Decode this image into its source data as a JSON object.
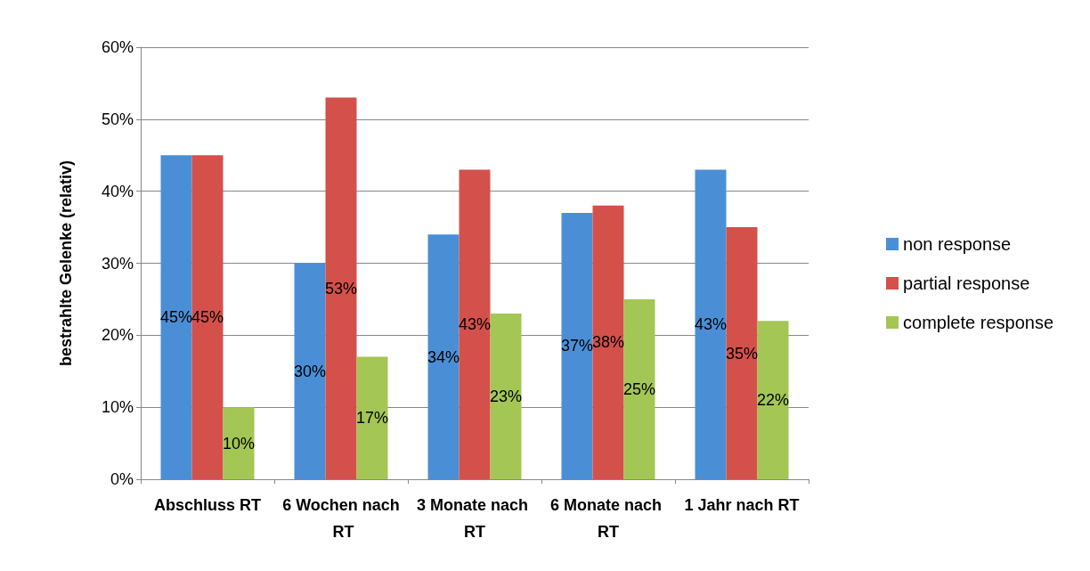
{
  "chart_data": {
    "type": "bar",
    "ylabel": "bestrahlte Gelenke (relativ)",
    "categories": [
      "Abschluss RT",
      "6 Wochen nach RT",
      "3 Monate nach RT",
      "6 Monate nach RT",
      "1 Jahr nach RT"
    ],
    "series": [
      {
        "name": "non response",
        "color": "#4a8fd6",
        "values": [
          45,
          30,
          34,
          37,
          43
        ],
        "value_labels": [
          "45%",
          "30%",
          "34%",
          "37%",
          "43%"
        ]
      },
      {
        "name": "partial response",
        "color": "#d4504a",
        "values": [
          45,
          53,
          43,
          38,
          35
        ],
        "value_labels": [
          "45%",
          "53%",
          "43%",
          "38%",
          "35%"
        ]
      },
      {
        "name": "complete response",
        "color": "#a3c654",
        "values": [
          10,
          17,
          23,
          25,
          22
        ],
        "value_labels": [
          "10%",
          "17%",
          "23%",
          "25%",
          "22%"
        ]
      }
    ],
    "ylim": [
      0,
      60
    ],
    "yticks": [
      {
        "value": 0,
        "label": "0%"
      },
      {
        "value": 10,
        "label": "10%"
      },
      {
        "value": 20,
        "label": "20%"
      },
      {
        "value": 30,
        "label": "30%"
      },
      {
        "value": 40,
        "label": "40%"
      },
      {
        "value": 50,
        "label": "50%"
      },
      {
        "value": 60,
        "label": "60%"
      }
    ],
    "grid": "y",
    "legend": "right"
  }
}
